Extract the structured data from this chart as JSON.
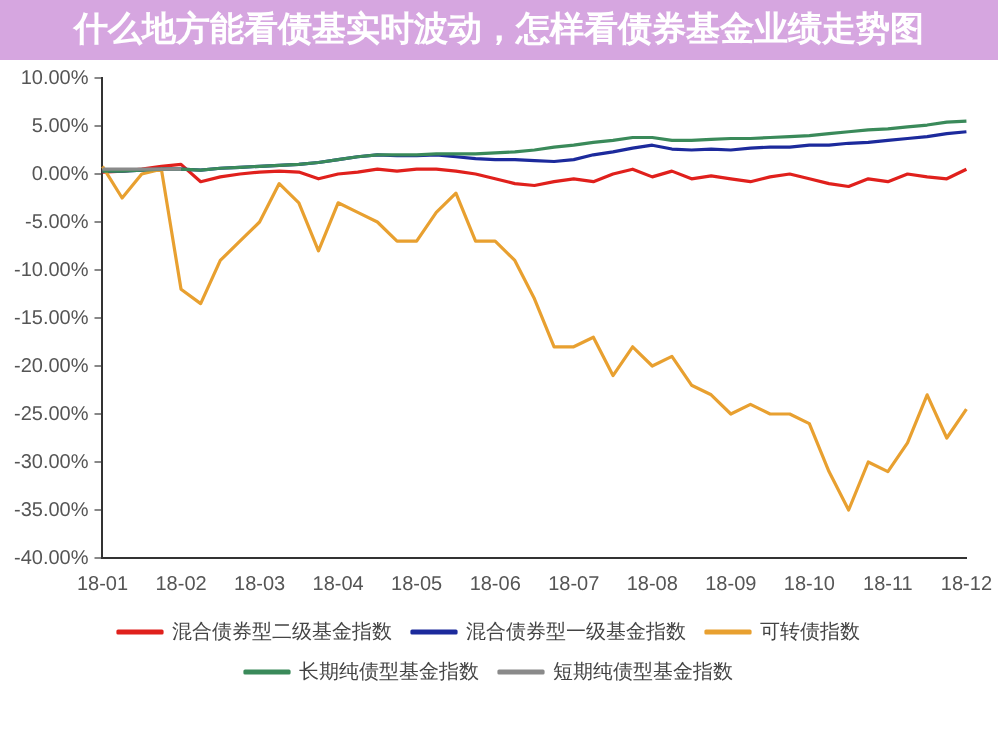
{
  "chart_data": {
    "type": "line",
    "title": "什么地方能看债基实时波动，怎样看债券基金业绩走势图",
    "categories": [
      "18-01",
      null,
      null,
      null,
      "18-02",
      null,
      null,
      null,
      "18-03",
      null,
      null,
      null,
      "18-04",
      null,
      null,
      null,
      "18-05",
      null,
      null,
      null,
      "18-06",
      null,
      null,
      null,
      "18-07",
      null,
      null,
      null,
      "18-08",
      null,
      null,
      null,
      "18-09",
      null,
      null,
      null,
      "18-10",
      null,
      null,
      null,
      "18-11",
      null,
      null,
      null,
      "18-12"
    ],
    "series": [
      {
        "name": "混合债券型二级基金指数",
        "color": "#e0201c",
        "values": [
          0.2,
          0.3,
          0.5,
          0.8,
          1.0,
          -0.8,
          -0.3,
          0,
          0.2,
          0.3,
          0.2,
          -0.5,
          0,
          0.2,
          0.5,
          0.3,
          0.5,
          0.5,
          0.3,
          0,
          -0.5,
          -1.0,
          -1.2,
          -0.8,
          -0.5,
          -0.8,
          0,
          0.5,
          -0.3,
          0.3,
          -0.5,
          -0.2,
          -0.5,
          -0.8,
          -0.3,
          0,
          -0.5,
          -1.0,
          -1.3,
          -0.5,
          -0.8,
          0,
          -0.3,
          -0.5,
          0.5
        ]
      },
      {
        "name": "混合债券型一级基金指数",
        "color": "#1c2a9c",
        "values": [
          0.3,
          0.3,
          0.4,
          0.5,
          0.5,
          0.4,
          0.6,
          0.7,
          0.8,
          0.9,
          1.0,
          1.2,
          1.5,
          1.8,
          2.0,
          1.9,
          1.9,
          2.0,
          1.8,
          1.6,
          1.5,
          1.5,
          1.4,
          1.3,
          1.5,
          2.0,
          2.3,
          2.7,
          3.0,
          2.6,
          2.5,
          2.6,
          2.5,
          2.7,
          2.8,
          2.8,
          3.0,
          3.0,
          3.2,
          3.3,
          3.5,
          3.7,
          3.9,
          4.2,
          4.4
        ]
      },
      {
        "name": "可转债指数",
        "color": "#e8a030",
        "values": [
          0.8,
          -2.5,
          0,
          0.5,
          -12,
          -13.5,
          -9,
          -7,
          -5,
          -1,
          -3,
          -8,
          -3,
          -4,
          -5,
          -7,
          -7,
          -4,
          -2,
          -7,
          -7,
          -9,
          -13,
          -18,
          -18,
          -17,
          -21,
          -18,
          -20,
          -19,
          -22,
          -23,
          -25,
          -24,
          -25,
          -25,
          -26,
          -31,
          -35,
          -30,
          -31,
          -28,
          -23,
          -27.5,
          -24.5
        ]
      },
      {
        "name": "长期纯债型基金指数",
        "color": "#3a8a5a",
        "values": [
          0.3,
          0.3,
          0.4,
          0.5,
          0.5,
          0.4,
          0.6,
          0.7,
          0.8,
          0.9,
          1.0,
          1.2,
          1.5,
          1.8,
          2.0,
          2.0,
          2.0,
          2.1,
          2.1,
          2.1,
          2.2,
          2.3,
          2.5,
          2.8,
          3.0,
          3.3,
          3.5,
          3.8,
          3.8,
          3.5,
          3.5,
          3.6,
          3.7,
          3.7,
          3.8,
          3.9,
          4.0,
          4.2,
          4.4,
          4.6,
          4.7,
          4.9,
          5.1,
          5.4,
          5.5
        ]
      },
      {
        "name": "短期纯债型基金指数",
        "color": "#8a8a8a",
        "values": [
          0.5,
          0.5,
          0.5,
          0.5,
          0.5,
          null,
          null,
          null,
          null,
          null,
          null,
          null,
          null,
          null,
          null,
          null,
          null,
          null,
          null,
          null,
          null,
          null,
          null,
          null,
          null,
          null,
          null,
          null,
          null,
          null,
          null,
          null,
          null,
          null,
          null,
          null,
          null,
          null,
          null,
          null,
          null,
          null,
          null,
          null,
          null
        ]
      }
    ],
    "ylim": [
      -40,
      10
    ],
    "yticks": [
      {
        "value": 10,
        "label": "10.00%"
      },
      {
        "value": 5,
        "label": "5.00%"
      },
      {
        "value": 0,
        "label": "0.00%"
      },
      {
        "value": -5,
        "label": "-5.00%"
      },
      {
        "value": -10,
        "label": "-10.00%"
      },
      {
        "value": -15,
        "label": "-15.00%"
      },
      {
        "value": -20,
        "label": "-20.00%"
      },
      {
        "value": -25,
        "label": "-25.00%"
      },
      {
        "value": -30,
        "label": "-30.00%"
      },
      {
        "value": -35,
        "label": "-35.00%"
      },
      {
        "value": -40,
        "label": "-40.00%"
      }
    ],
    "grid": false,
    "legend": "bottom",
    "marker": "none",
    "line_style": "solid"
  }
}
